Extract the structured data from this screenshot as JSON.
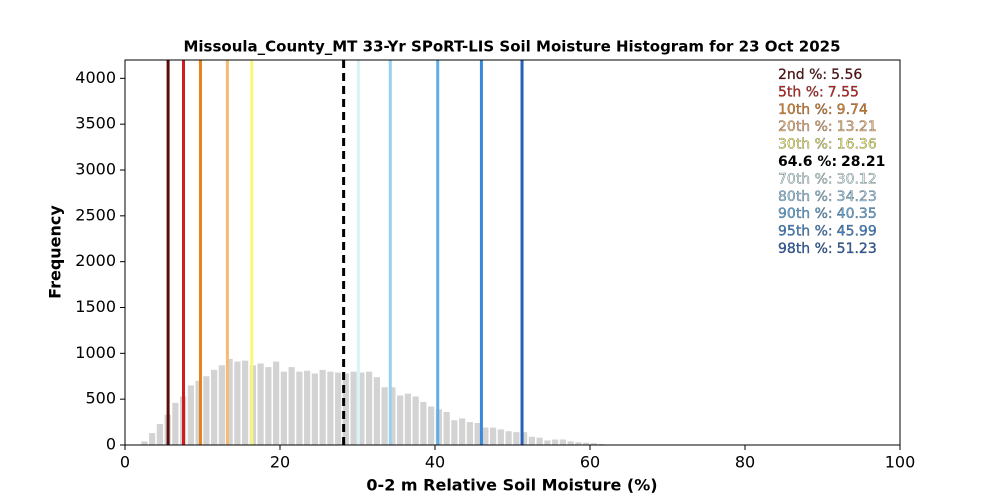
{
  "chart_data": {
    "type": "histogram",
    "title": "Missoula_County_MT 33-Yr SPoRT-LIS Soil Moisture Histogram for 23 Oct 2025",
    "xlabel": "0-2 m Relative Soil Moisture (%)",
    "ylabel": "Frequency",
    "bins": [
      2,
      3,
      4,
      5,
      6,
      7,
      8,
      9,
      10,
      11,
      12,
      13,
      14,
      15,
      16,
      17,
      18,
      19,
      20,
      21,
      22,
      23,
      24,
      25,
      26,
      27,
      28,
      29,
      30,
      31,
      32,
      33,
      34,
      35,
      36,
      37,
      38,
      39,
      40,
      41,
      42,
      43,
      44,
      45,
      46,
      47,
      48,
      49,
      50,
      51,
      52,
      53,
      54,
      55,
      56,
      57,
      58,
      59,
      60,
      61,
      62
    ],
    "values": [
      40,
      130,
      230,
      330,
      460,
      530,
      650,
      700,
      750,
      820,
      870,
      940,
      910,
      920,
      870,
      890,
      850,
      910,
      800,
      850,
      800,
      810,
      780,
      820,
      800,
      790,
      780,
      800,
      790,
      800,
      740,
      630,
      630,
      540,
      560,
      530,
      470,
      420,
      390,
      360,
      270,
      290,
      250,
      240,
      190,
      190,
      170,
      150,
      140,
      140,
      90,
      80,
      50,
      60,
      60,
      40,
      30,
      25,
      20,
      10
    ],
    "color": "#d3d3d3",
    "xlim": [
      0,
      100
    ],
    "xticks": [
      0,
      20,
      40,
      60,
      80,
      100
    ],
    "ylim": [
      0,
      4200
    ],
    "yticks": [
      0,
      500,
      1000,
      1500,
      2000,
      2500,
      3000,
      3500,
      4000
    ],
    "percentiles": [
      {
        "label": "2nd %:",
        "value": 5.56,
        "color": "#5c0a0a"
      },
      {
        "label": "5th %:",
        "value": 7.55,
        "color": "#d01c1c"
      },
      {
        "label": "10th %:",
        "value": 9.74,
        "color": "#e8821e"
      },
      {
        "label": "20th %:",
        "value": 13.21,
        "color": "#f8b878"
      },
      {
        "label": "30th %:",
        "value": 16.36,
        "color": "#f8f878"
      },
      {
        "label": "64.6 %:",
        "value": 28.21,
        "color": "#000000",
        "linestyle": "dashed"
      },
      {
        "label": "70th %:",
        "value": 30.12,
        "color": "#d8f4f8"
      },
      {
        "label": "80th %:",
        "value": 34.23,
        "color": "#98d0f0"
      },
      {
        "label": "90th %:",
        "value": 40.35,
        "color": "#60aee8"
      },
      {
        "label": "95th %:",
        "value": 45.99,
        "color": "#3a88d8"
      },
      {
        "label": "98th %:",
        "value": 51.23,
        "color": "#2860b8"
      }
    ]
  }
}
